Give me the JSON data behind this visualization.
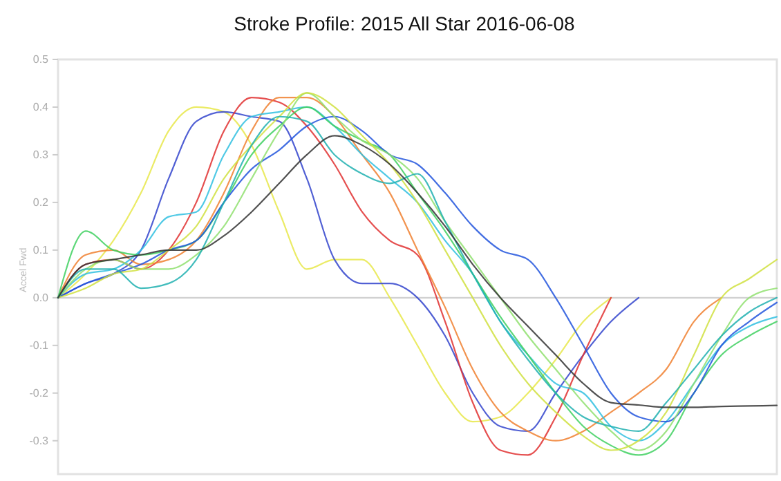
{
  "chart_data": {
    "type": "line",
    "title": "Stroke Profile: 2015 All Star 2016-06-08",
    "ylabel": "Accel Fwd",
    "categories": [
      null,
      null,
      null,
      null,
      null,
      null,
      null,
      null,
      null,
      null,
      null,
      null,
      null,
      null,
      null,
      null,
      null,
      null,
      null,
      null,
      null,
      null,
      null,
      null,
      null,
      null,
      null
    ],
    "ylim": [
      -0.37,
      0.5
    ],
    "yticks": [
      -0.3,
      -0.2,
      -0.1,
      {
        "value": 0,
        "label": "0.0"
      },
      0.1,
      0.2,
      0.3,
      0.4,
      0.5
    ],
    "tick_labels": "y",
    "marker": "none",
    "line_style": "solid",
    "ref_lines": [
      {
        "axis": "y",
        "value": 0,
        "color": "#d0d0d0"
      }
    ],
    "series": [
      {
        "color": "#e8e84a",
        "values": [
          0,
          0.05,
          0.12,
          0.22,
          0.35,
          0.4,
          0.39,
          0.32,
          0.18,
          0.06,
          0.08,
          0.08,
          0.0,
          -0.1,
          -0.2,
          -0.26,
          -0.25,
          -0.2,
          -0.13,
          -0.05,
          0,
          null,
          null,
          null,
          null,
          null,
          null
        ]
      },
      {
        "color": "#3344cc",
        "values": [
          0,
          0.03,
          0.05,
          0.1,
          0.25,
          0.37,
          0.39,
          0.38,
          0.37,
          0.25,
          0.08,
          0.03,
          0.03,
          0.0,
          -0.08,
          -0.2,
          -0.27,
          -0.28,
          -0.2,
          -0.12,
          -0.05,
          0,
          null,
          null,
          null,
          null,
          null
        ]
      },
      {
        "color": "#e03030",
        "values": [
          0,
          0.07,
          0.08,
          0.06,
          0.1,
          0.2,
          0.35,
          0.42,
          0.41,
          0.36,
          0.28,
          0.18,
          0.12,
          0.09,
          -0.05,
          -0.22,
          -0.32,
          -0.33,
          -0.25,
          -0.12,
          0.0,
          null,
          null,
          null,
          null,
          null,
          null
        ]
      },
      {
        "color": "#f08030",
        "values": [
          0,
          0.09,
          0.1,
          0.07,
          0.08,
          0.12,
          0.22,
          0.35,
          0.42,
          0.42,
          0.38,
          0.3,
          0.22,
          0.1,
          -0.02,
          -0.15,
          -0.24,
          -0.28,
          -0.3,
          -0.28,
          -0.24,
          -0.2,
          -0.15,
          -0.05,
          0.0,
          null,
          null
        ]
      },
      {
        "color": "#30c0e0",
        "values": [
          0,
          0.05,
          0.06,
          0.1,
          0.17,
          0.18,
          0.3,
          0.38,
          0.39,
          0.4,
          0.36,
          0.3,
          0.25,
          0.2,
          0.12,
          0.05,
          -0.05,
          -0.12,
          -0.18,
          -0.2,
          -0.27,
          -0.3,
          -0.26,
          -0.18,
          -0.1,
          -0.06,
          -0.04
        ]
      },
      {
        "color": "#40d060",
        "values": [
          0,
          0.14,
          0.1,
          0.09,
          0.1,
          0.12,
          0.2,
          0.3,
          0.36,
          0.4,
          0.36,
          0.33,
          0.3,
          0.22,
          0.14,
          0.05,
          -0.04,
          -0.12,
          -0.2,
          -0.27,
          -0.31,
          -0.33,
          -0.3,
          -0.2,
          -0.12,
          -0.08,
          -0.05
        ]
      },
      {
        "color": "#2255dd",
        "values": [
          0,
          0.03,
          0.05,
          0.07,
          0.1,
          0.12,
          0.2,
          0.27,
          0.31,
          0.36,
          0.38,
          0.35,
          0.3,
          0.28,
          0.22,
          0.15,
          0.1,
          0.08,
          0.0,
          -0.1,
          -0.2,
          -0.25,
          -0.26,
          -0.2,
          -0.1,
          -0.05,
          -0.01
        ]
      },
      {
        "color": "#90e070",
        "values": [
          0,
          0.06,
          0.08,
          0.06,
          0.06,
          0.09,
          0.15,
          0.25,
          0.35,
          0.43,
          0.38,
          0.33,
          0.3,
          0.25,
          0.16,
          0.08,
          0.0,
          -0.08,
          -0.15,
          -0.22,
          -0.28,
          -0.32,
          -0.28,
          -0.18,
          -0.08,
          0.0,
          0.02
        ]
      },
      {
        "color": "#d0e040",
        "values": [
          0,
          0.02,
          0.05,
          0.06,
          0.1,
          0.15,
          0.25,
          0.32,
          0.38,
          0.43,
          0.4,
          0.34,
          0.28,
          0.2,
          0.1,
          0.0,
          -0.1,
          -0.18,
          -0.24,
          -0.29,
          -0.32,
          -0.3,
          -0.24,
          -0.12,
          0.0,
          0.04,
          0.08
        ]
      },
      {
        "color": "#20b0b0",
        "values": [
          0,
          0.06,
          0.06,
          0.02,
          0.03,
          0.08,
          0.2,
          0.32,
          0.38,
          0.37,
          0.3,
          0.26,
          0.24,
          0.26,
          0.16,
          0.05,
          -0.05,
          -0.13,
          -0.2,
          -0.25,
          -0.27,
          -0.28,
          -0.22,
          -0.15,
          -0.08,
          -0.03,
          0.0
        ]
      },
      {
        "color": "#333333",
        "values": [
          0,
          0.07,
          0.08,
          0.09,
          0.1,
          0.1,
          0.13,
          0.18,
          0.24,
          0.3,
          0.34,
          0.32,
          0.28,
          0.22,
          0.15,
          0.07,
          0.0,
          -0.06,
          -0.12,
          -0.18,
          -0.22,
          -0.225,
          -0.23,
          -0.23,
          -0.228,
          -0.227,
          -0.226
        ]
      }
    ]
  }
}
